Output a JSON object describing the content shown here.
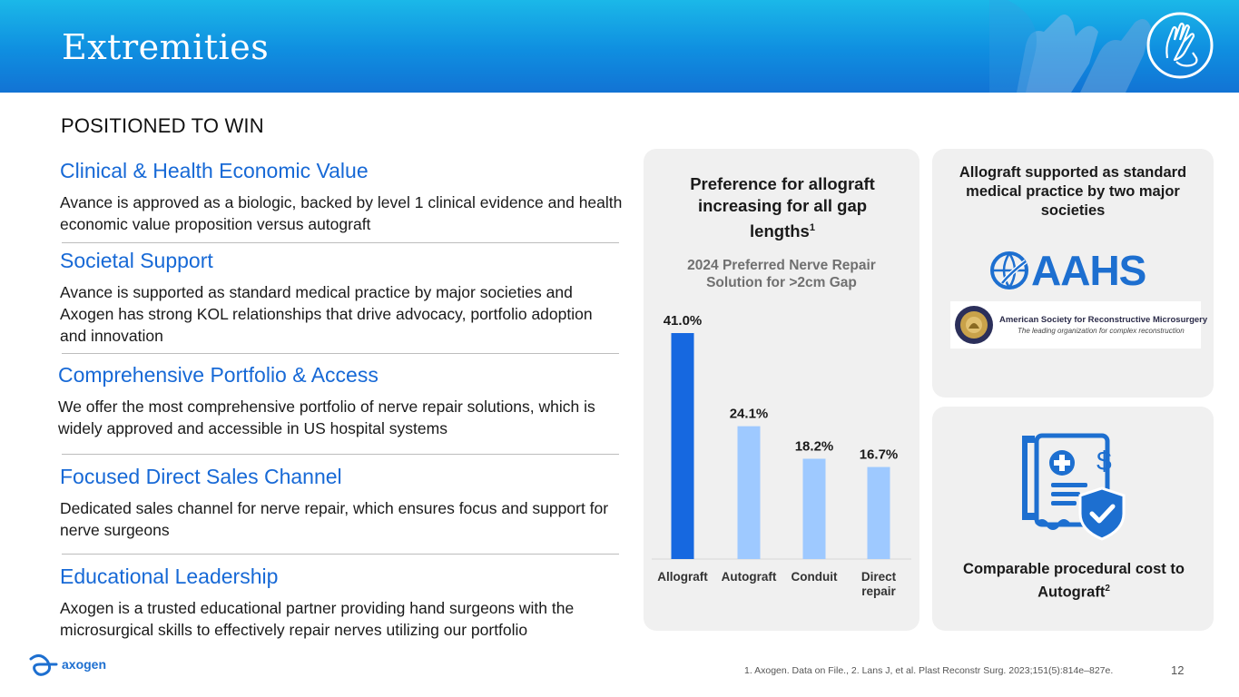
{
  "header": {
    "title": "Extremities"
  },
  "subtitle": "POSITIONED TO WIN",
  "sections": [
    {
      "heading": "Clinical & Health Economic Value",
      "body": "Avance is approved as a biologic, backed by level 1 clinical evidence and health economic value proposition versus autograft"
    },
    {
      "heading": "Societal Support",
      "body": "Avance is supported as standard medical practice by major societies and Axogen has strong KOL relationships that drive advocacy, portfolio adoption and innovation"
    },
    {
      "heading": "Comprehensive Portfolio & Access",
      "body": "We offer the most comprehensive portfolio of nerve repair solutions, which is widely approved and accessible in US hospital systems"
    },
    {
      "heading": "Focused Direct Sales Channel",
      "body": "Dedicated sales channel for nerve repair, which ensures focus and support for nerve surgeons"
    },
    {
      "heading": "Educational Leadership",
      "body": "Axogen is a trusted educational partner providing hand surgeons with the microsurgical skills to effectively repair nerves utilizing our portfolio"
    }
  ],
  "chart_panel": {
    "title": "Preference for allograft increasing for all gap lengths",
    "title_sup": "1"
  },
  "chart_data": {
    "type": "bar",
    "title": "2024 Preferred Nerve Repair Solution for >2cm Gap",
    "categories": [
      "Allograft",
      "Autograft",
      "Conduit",
      "Direct repair"
    ],
    "values": [
      41.0,
      24.1,
      18.2,
      16.7
    ],
    "value_labels": [
      "41.0%",
      "24.1%",
      "18.2%",
      "16.7%"
    ],
    "colors": [
      "#1668e0",
      "#9ec9ff",
      "#9ec9ff",
      "#9ec9ff"
    ],
    "ylim": [
      0,
      41.0
    ],
    "grid": false,
    "legend": "none"
  },
  "societies_panel": {
    "title": "Allograft supported as standard medical practice by two major societies",
    "aahs_text": "AAHS",
    "asrm_name": "American Society for Reconstructive Microsurgery",
    "asrm_tagline": "The leading organization for complex reconstruction"
  },
  "cost_panel": {
    "title": "Comparable procedural cost to Autograft",
    "title_sup": "2",
    "icon": "medical-bill-shield-icon"
  },
  "footer": {
    "logo_text": "axogen",
    "footnote": "1. Axogen. Data on File.,  2. Lans J, et al. Plast Reconstr Surg. 2023;151(5):814e–827e.",
    "page_number": "12"
  },
  "colors": {
    "accent_blue": "#1769d6",
    "header_top": "#1bb8e8",
    "header_bottom": "#1273d4",
    "panel_bg": "#f0f0f0"
  }
}
